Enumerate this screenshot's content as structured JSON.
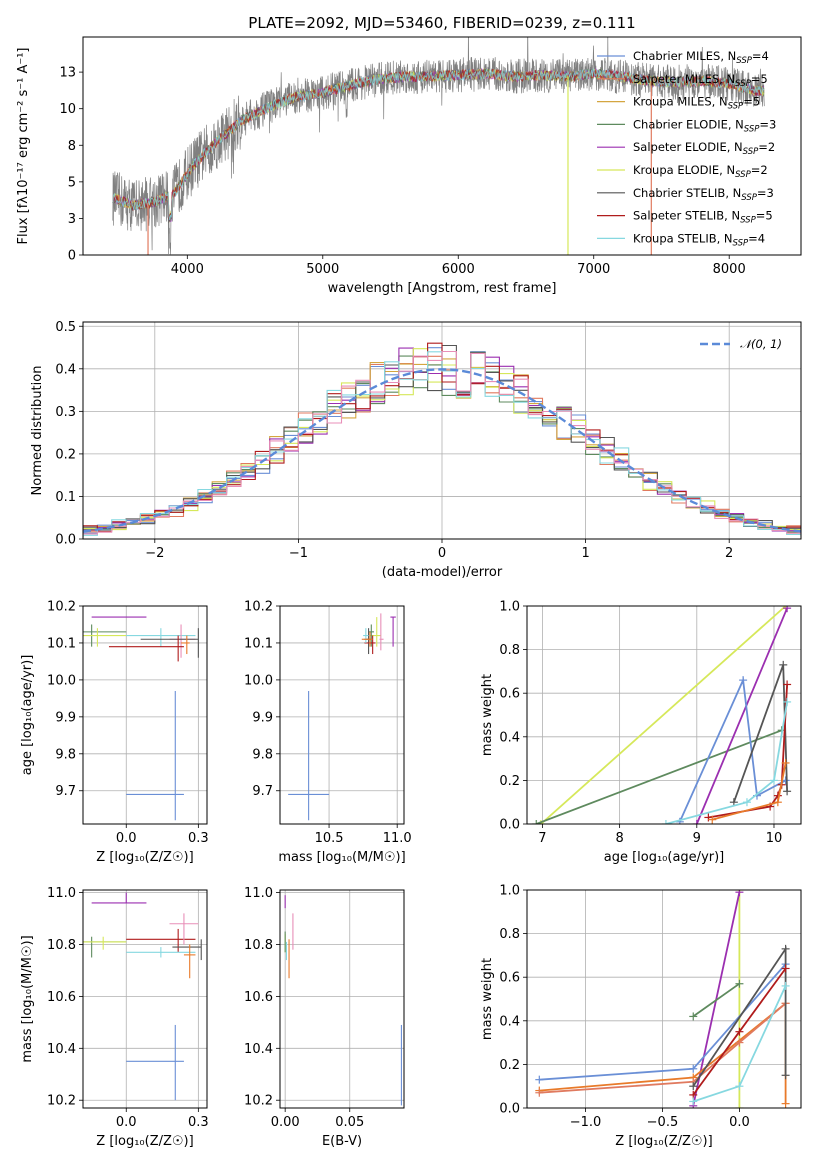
{
  "figure_title": "PLATE=2092, MJD=53460, FIBERID=0239, z=0.111",
  "colors": {
    "Chabrier MILES": "#6a8fd6",
    "Salpeter MILES": "#e07a5f",
    "Kroupa MILES": "#d4a640",
    "Chabrier ELODIE": "#5e8a5e",
    "Salpeter ELODIE": "#9b2fb0",
    "Kroupa ELODIE": "#d6e85a",
    "Chabrier STELIB": "#555555",
    "Salpeter STELIB": "#b01c1c",
    "Kroupa STELIB": "#86d8e0",
    "orange": "#e87a2a",
    "pink": "#e88fb8",
    "gaussian": "#5b8ad8",
    "spectrum": "#808080"
  },
  "chart_data": [
    {
      "id": "spectrum",
      "type": "line",
      "title": "PLATE=2092, MJD=53460, FIBERID=0239, z=0.111",
      "xlabel": "wavelength [Angstrom, rest frame]",
      "ylabel": "Flux [fλ10⁻¹⁷ erg cm⁻² s⁻¹ A⁻¹]",
      "xlim": [
        3230,
        8530
      ],
      "ylim": [
        0,
        14.9
      ],
      "xticks": [
        4000,
        5000,
        6000,
        7000,
        8000
      ],
      "yticks": [
        0.0,
        2.5,
        5.0,
        7.5,
        10.0,
        12.5
      ],
      "grid": false,
      "legend_position": "right",
      "legend": [
        {
          "name": "Chabrier MILES",
          "nssp": "4"
        },
        {
          "name": "Salpeter MILES",
          "nssp": "5"
        },
        {
          "name": "Kroupa MILES",
          "nssp": "5"
        },
        {
          "name": "Chabrier ELODIE",
          "nssp": "3"
        },
        {
          "name": "Salpeter ELODIE",
          "nssp": "2"
        },
        {
          "name": "Kroupa ELODIE",
          "nssp": "2"
        },
        {
          "name": "Chabrier STELIB",
          "nssp": "3"
        },
        {
          "name": "Salpeter STELIB",
          "nssp": "5"
        },
        {
          "name": "Kroupa STELIB",
          "nssp": "4"
        }
      ],
      "continuum_x": [
        3450,
        3600,
        3750,
        3900,
        4050,
        4200,
        4400,
        4600,
        4800,
        5000,
        5200,
        5400,
        5600,
        5800,
        6000,
        6200,
        6400,
        6600,
        6800,
        7000,
        7200,
        7400,
        7600,
        7800,
        8000,
        8200,
        8260
      ],
      "continuum_y": [
        3.9,
        3.4,
        3.6,
        4.2,
        6.2,
        7.6,
        9.2,
        10.1,
        10.8,
        11.1,
        11.6,
        12.0,
        12.2,
        12.2,
        12.3,
        12.4,
        12.2,
        12.3,
        12.2,
        12.4,
        12.2,
        11.9,
        11.8,
        11.9,
        11.7,
        11.2,
        11.2
      ],
      "drop_lines": [
        {
          "series": "Kroupa ELODIE",
          "x": 6810
        },
        {
          "series": "Salpeter MILES",
          "x": 7425
        },
        {
          "series": "Salpeter MILES",
          "x": 3710
        }
      ]
    },
    {
      "id": "residuals",
      "type": "histogram",
      "xlabel": "(data-model)/error",
      "ylabel": "Normed distribution",
      "xlim": [
        -2.5,
        2.5
      ],
      "ylim": [
        0,
        0.51
      ],
      "xticks": [
        -2,
        -1,
        0,
        1,
        2
      ],
      "yticks": [
        0.0,
        0.1,
        0.2,
        0.3,
        0.4,
        0.5
      ],
      "grid": true,
      "legend_position": "top-right",
      "gaussian_label": "𝒩(0, 1)",
      "bin_width": 0.1,
      "envelope_seed": 7
    },
    {
      "id": "z_age",
      "type": "scatter",
      "xlabel": "Z [log₁₀(Z/Z☉)]",
      "ylabel": "age  [log₁₀(age/yr)]",
      "xlim": [
        -0.15,
        0.28
      ],
      "ylim": [
        9.61,
        10.2
      ],
      "xticks": [
        0.0,
        0.25
      ],
      "yticks": [
        9.7,
        9.8,
        9.9,
        10.0,
        10.1,
        10.2
      ],
      "grid": true,
      "points": [
        {
          "series": "Chabrier MILES",
          "x": 0.17,
          "y": 9.69,
          "xerr": [
            0.17,
            0.03
          ],
          "yerr": [
            0.07,
            0.28
          ]
        },
        {
          "series": "Salpeter ELODIE",
          "x": 0.0,
          "y": 10.17,
          "xerr": [
            0.12,
            0.07
          ],
          "yerr": [
            0.0,
            0.0
          ]
        },
        {
          "series": "Chabrier ELODIE",
          "x": -0.12,
          "y": 10.13,
          "xerr": [
            0.03,
            0.12
          ],
          "yerr": [
            0.04,
            0.02
          ]
        },
        {
          "series": "Kroupa ELODIE",
          "x": -0.1,
          "y": 10.12,
          "xerr": [
            0.05,
            0.1
          ],
          "yerr": [
            0.03,
            0.02
          ]
        },
        {
          "series": "Kroupa STELIB",
          "x": 0.12,
          "y": 10.12,
          "xerr": [
            0.12,
            0.12
          ],
          "yerr": [
            0.03,
            0.02
          ]
        },
        {
          "series": "pink",
          "x": 0.19,
          "y": 10.11,
          "xerr": [
            0.04,
            0.05
          ],
          "yerr": [
            0.05,
            0.04
          ]
        },
        {
          "series": "Chabrier STELIB",
          "x": 0.25,
          "y": 10.11,
          "xerr": [
            0.2,
            0.0
          ],
          "yerr": [
            0.05,
            0.03
          ]
        },
        {
          "series": "Salpeter STELIB",
          "x": 0.18,
          "y": 10.09,
          "xerr": [
            0.24,
            0.02
          ],
          "yerr": [
            0.04,
            0.03
          ]
        },
        {
          "series": "orange",
          "x": 0.21,
          "y": 10.1,
          "xerr": [
            0.02,
            0.01
          ],
          "yerr": [
            0.03,
            0.02
          ]
        }
      ]
    },
    {
      "id": "mass_age",
      "type": "scatter",
      "xlabel": "mass [log₁₀(M/M☉)]",
      "ylabel": "",
      "xlim": [
        10.14,
        11.05
      ],
      "ylim": [
        9.61,
        10.2
      ],
      "xticks": [
        10.5,
        11.0
      ],
      "yticks": [
        9.7,
        9.8,
        9.9,
        10.0,
        10.1,
        10.2
      ],
      "grid": true,
      "points": [
        {
          "series": "Chabrier MILES",
          "x": 10.35,
          "y": 9.69,
          "xerr": [
            0.15,
            0.15
          ],
          "yerr": [
            0.07,
            0.28
          ]
        },
        {
          "series": "Kroupa ELODIE",
          "x": 10.85,
          "y": 10.12,
          "xerr": [
            0.05,
            0.03
          ],
          "yerr": [
            0.03,
            0.05
          ]
        },
        {
          "series": "Chabrier ELODIE",
          "x": 10.81,
          "y": 10.13,
          "xerr": [
            0.02,
            0.02
          ],
          "yerr": [
            0.04,
            0.02
          ]
        },
        {
          "series": "Chabrier STELIB",
          "x": 10.79,
          "y": 10.11,
          "xerr": [
            0.03,
            0.02
          ],
          "yerr": [
            0.04,
            0.03
          ]
        },
        {
          "series": "Salpeter STELIB",
          "x": 10.82,
          "y": 10.1,
          "xerr": [
            0.06,
            0.02
          ],
          "yerr": [
            0.03,
            0.02
          ]
        },
        {
          "series": "Kroupa STELIB",
          "x": 10.77,
          "y": 10.12,
          "xerr": [
            0.02,
            0.02
          ],
          "yerr": [
            0.02,
            0.02
          ]
        },
        {
          "series": "orange",
          "x": 10.8,
          "y": 10.11,
          "xerr": [
            0.06,
            0.02
          ],
          "yerr": [
            0.02,
            0.02
          ]
        },
        {
          "series": "Salpeter ELODIE",
          "x": 10.97,
          "y": 10.17,
          "xerr": [
            0.02,
            0.02
          ],
          "yerr": [
            0.08,
            0.0
          ]
        },
        {
          "series": "pink",
          "x": 10.88,
          "y": 10.11,
          "xerr": [
            0.01,
            0.02
          ],
          "yerr": [
            0.03,
            0.07
          ]
        }
      ]
    },
    {
      "id": "age_weight",
      "type": "line",
      "xlabel": "age  [log₁₀(age/yr)]",
      "ylabel": "mass weight",
      "xlim": [
        6.8,
        10.35
      ],
      "ylim": [
        0,
        1.0
      ],
      "xticks": [
        7,
        8,
        9,
        10
      ],
      "yticks": [
        0.0,
        0.2,
        0.4,
        0.6,
        0.8,
        1.0
      ],
      "grid": true,
      "series": [
        {
          "name": "Kroupa ELODIE",
          "x": [
            6.98,
            10.15
          ],
          "y": [
            0.0,
            1.0
          ]
        },
        {
          "name": "Chabrier ELODIE",
          "x": [
            6.92,
            10.1
          ],
          "y": [
            0.0,
            0.43
          ]
        },
        {
          "name": "Salpeter ELODIE",
          "x": [
            9.0,
            10.17
          ],
          "y": [
            0.0,
            0.99
          ]
        },
        {
          "name": "Chabrier MILES",
          "x": [
            8.78,
            9.6,
            9.78,
            10.15
          ],
          "y": [
            0.01,
            0.66,
            0.13,
            0.2
          ]
        },
        {
          "name": "Chabrier STELIB",
          "x": [
            9.48,
            10.12,
            10.17
          ],
          "y": [
            0.1,
            0.73,
            0.15
          ]
        },
        {
          "name": "Salpeter STELIB",
          "x": [
            9.15,
            9.95,
            10.05,
            10.1,
            10.17
          ],
          "y": [
            0.03,
            0.08,
            0.13,
            0.18,
            0.64
          ]
        },
        {
          "name": "Kroupa STELIB",
          "x": [
            8.6,
            9.65,
            10.0,
            10.17
          ],
          "y": [
            0.0,
            0.1,
            0.2,
            0.56
          ]
        },
        {
          "name": "orange",
          "x": [
            9.2,
            10.05,
            10.15
          ],
          "y": [
            0.02,
            0.1,
            0.28
          ]
        }
      ]
    },
    {
      "id": "z_mass",
      "type": "scatter",
      "xlabel": "Z [log₁₀(Z/Z☉)]",
      "ylabel": "mass [log₁₀(M/M☉)]",
      "xlim": [
        -0.15,
        0.28
      ],
      "ylim": [
        10.17,
        11.01
      ],
      "xticks": [
        0.0,
        0.25
      ],
      "yticks": [
        10.2,
        10.4,
        10.6,
        10.8,
        11.0
      ],
      "grid": true,
      "points": [
        {
          "series": "Chabrier MILES",
          "x": 0.17,
          "y": 10.35,
          "xerr": [
            0.17,
            0.03
          ],
          "yerr": [
            0.15,
            0.14
          ]
        },
        {
          "series": "Salpeter ELODIE",
          "x": 0.0,
          "y": 10.96,
          "xerr": [
            0.12,
            0.07
          ],
          "yerr": [
            0.0,
            0.04
          ]
        },
        {
          "series": "Chabrier ELODIE",
          "x": -0.12,
          "y": 10.81,
          "xerr": [
            0.03,
            0.12
          ],
          "yerr": [
            0.06,
            0.02
          ]
        },
        {
          "series": "Kroupa ELODIE",
          "x": -0.08,
          "y": 10.81,
          "xerr": [
            0.07,
            0.08
          ],
          "yerr": [
            0.03,
            0.02
          ]
        },
        {
          "series": "Salpeter STELIB",
          "x": 0.18,
          "y": 10.82,
          "xerr": [
            0.18,
            0.06
          ],
          "yerr": [
            0.05,
            0.04
          ]
        },
        {
          "series": "pink",
          "x": 0.2,
          "y": 10.88,
          "xerr": [
            0.05,
            0.05
          ],
          "yerr": [
            0.08,
            0.04
          ]
        },
        {
          "series": "Chabrier STELIB",
          "x": 0.26,
          "y": 10.79,
          "xerr": [
            0.1,
            0.0
          ],
          "yerr": [
            0.05,
            0.03
          ]
        },
        {
          "series": "Kroupa STELIB",
          "x": 0.12,
          "y": 10.77,
          "xerr": [
            0.12,
            0.12
          ],
          "yerr": [
            0.02,
            0.02
          ]
        },
        {
          "series": "orange",
          "x": 0.22,
          "y": 10.76,
          "xerr": [
            0.02,
            0.02
          ],
          "yerr": [
            0.09,
            0.04
          ]
        }
      ]
    },
    {
      "id": "ebv_mass",
      "type": "scatter",
      "xlabel": "E(B-V)",
      "ylabel": "",
      "xlim": [
        -0.004,
        0.092
      ],
      "ylim": [
        10.17,
        11.01
      ],
      "xticks": [
        0.0,
        0.05
      ],
      "yticks": [
        10.2,
        10.4,
        10.6,
        10.8,
        11.0
      ],
      "grid": true,
      "points": [
        {
          "series": "Chabrier MILES",
          "x": 0.09,
          "y": 10.35,
          "xerr": [
            0.0,
            0.0
          ],
          "yerr": [
            0.17,
            0.14
          ]
        },
        {
          "series": "Salpeter ELODIE",
          "x": 0.0,
          "y": 10.96,
          "xerr": [
            0.0,
            0.0
          ],
          "yerr": [
            0.02,
            0.03
          ]
        },
        {
          "series": "Kroupa ELODIE",
          "x": 0.0,
          "y": 10.81,
          "xerr": [
            0.0,
            0.0
          ],
          "yerr": [
            0.04,
            0.03
          ]
        },
        {
          "series": "Chabrier ELODIE",
          "x": 0.0,
          "y": 10.82,
          "xerr": [
            0.0,
            0.0
          ],
          "yerr": [
            0.05,
            0.03
          ]
        },
        {
          "series": "pink",
          "x": 0.006,
          "y": 10.86,
          "xerr": [
            0.0,
            0.0
          ],
          "yerr": [
            0.08,
            0.06
          ]
        },
        {
          "series": "orange",
          "x": 0.003,
          "y": 10.76,
          "xerr": [
            0.0,
            0.0
          ],
          "yerr": [
            0.09,
            0.06
          ]
        },
        {
          "series": "Kroupa STELIB",
          "x": 0.001,
          "y": 10.78,
          "xerr": [
            0.0,
            0.0
          ],
          "yerr": [
            0.04,
            0.03
          ]
        }
      ]
    },
    {
      "id": "z_weight",
      "type": "line",
      "xlabel": "Z [log₁₀(Z/Z☉)]",
      "ylabel": "mass weight",
      "xlim": [
        -1.38,
        0.4
      ],
      "ylim": [
        0,
        1.0
      ],
      "xticks": [
        -1.0,
        -0.5,
        0.0
      ],
      "yticks": [
        0.0,
        0.2,
        0.4,
        0.6,
        0.8,
        1.0
      ],
      "grid": true,
      "series": [
        {
          "name": "Kroupa ELODIE",
          "x": [
            0.0,
            0.0
          ],
          "y": [
            0.0,
            1.0
          ]
        },
        {
          "name": "Salpeter ELODIE",
          "x": [
            -0.3,
            0.0
          ],
          "y": [
            0.01,
            0.99
          ]
        },
        {
          "name": "Chabrier ELODIE",
          "x": [
            -0.3,
            0.0
          ],
          "y": [
            0.42,
            0.57
          ]
        },
        {
          "name": "Chabrier MILES",
          "x": [
            -1.3,
            -0.3,
            0.3
          ],
          "y": [
            0.13,
            0.18,
            0.66
          ]
        },
        {
          "name": "orange",
          "x": [
            -1.3,
            -0.3,
            0.3,
            0.3
          ],
          "y": [
            0.08,
            0.14,
            0.48,
            0.02
          ]
        },
        {
          "name": "Salpeter MILES",
          "x": [
            -1.3,
            -0.3,
            0.0,
            0.3
          ],
          "y": [
            0.07,
            0.12,
            0.3,
            0.48
          ]
        },
        {
          "name": "Chabrier STELIB",
          "x": [
            -0.3,
            0.3,
            0.3
          ],
          "y": [
            0.1,
            0.73,
            0.15
          ]
        },
        {
          "name": "Salpeter STELIB",
          "x": [
            -0.3,
            0.0,
            0.3
          ],
          "y": [
            0.06,
            0.35,
            0.64
          ]
        },
        {
          "name": "Kroupa STELIB",
          "x": [
            -0.3,
            0.0,
            0.3
          ],
          "y": [
            0.03,
            0.1,
            0.56
          ]
        }
      ]
    }
  ]
}
